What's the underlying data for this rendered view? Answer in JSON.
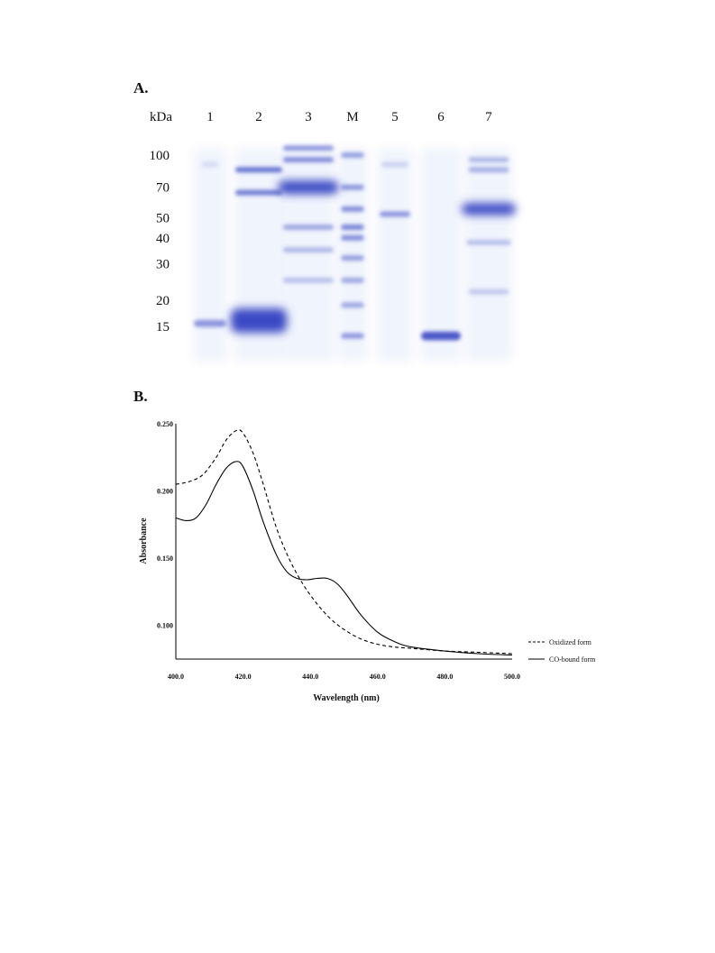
{
  "figure": {
    "panel_a_label": "A.",
    "panel_b_label": "B."
  },
  "gel": {
    "kda_header": "kDa",
    "lanes": [
      {
        "label": "1",
        "bands": [
          {
            "kda": 90,
            "intensity": 0.15,
            "width": 0.5
          },
          {
            "kda": 15.5,
            "intensity": 0.55,
            "width": 1.0,
            "thick": 1.3
          }
        ]
      },
      {
        "label": "2",
        "bands": [
          {
            "kda": 85,
            "intensity": 0.75,
            "width": 1.0
          },
          {
            "kda": 66,
            "intensity": 0.7,
            "width": 1.0
          },
          {
            "kda": 16,
            "intensity": 1.0,
            "width": 1.2,
            "thick": 4.5
          }
        ]
      },
      {
        "label": "3",
        "bands": [
          {
            "kda": 108,
            "intensity": 0.55,
            "width": 1.0
          },
          {
            "kda": 95,
            "intensity": 0.6,
            "width": 1.0
          },
          {
            "kda": 70,
            "intensity": 1.0,
            "width": 1.2,
            "thick": 2.5
          },
          {
            "kda": 45,
            "intensity": 0.45,
            "width": 1.0
          },
          {
            "kda": 35,
            "intensity": 0.35,
            "width": 1.0
          },
          {
            "kda": 25,
            "intensity": 0.3,
            "width": 1.0
          }
        ]
      },
      {
        "label": "M",
        "bands": [
          {
            "kda": 100,
            "intensity": 0.5,
            "width": 0.8
          },
          {
            "kda": 70,
            "intensity": 0.55,
            "width": 0.8
          },
          {
            "kda": 55,
            "intensity": 0.6,
            "width": 0.8
          },
          {
            "kda": 45,
            "intensity": 0.65,
            "width": 0.8
          },
          {
            "kda": 40,
            "intensity": 0.6,
            "width": 0.8
          },
          {
            "kda": 32,
            "intensity": 0.5,
            "width": 0.8
          },
          {
            "kda": 25,
            "intensity": 0.45,
            "width": 0.8
          },
          {
            "kda": 19,
            "intensity": 0.45,
            "width": 0.8
          },
          {
            "kda": 13.5,
            "intensity": 0.55,
            "width": 0.8
          }
        ]
      },
      {
        "label": "5",
        "bands": [
          {
            "kda": 90,
            "intensity": 0.2,
            "width": 0.8
          },
          {
            "kda": 52,
            "intensity": 0.55,
            "width": 0.9
          }
        ]
      },
      {
        "label": "6",
        "bands": [
          {
            "kda": 13.5,
            "intensity": 0.9,
            "width": 1.0,
            "thick": 1.6
          }
        ]
      },
      {
        "label": "7",
        "bands": [
          {
            "kda": 95,
            "intensity": 0.35,
            "width": 0.9
          },
          {
            "kda": 85,
            "intensity": 0.4,
            "width": 0.9
          },
          {
            "kda": 55,
            "intensity": 1.0,
            "width": 1.2,
            "thick": 2.2
          },
          {
            "kda": 38,
            "intensity": 0.3,
            "width": 1.0
          },
          {
            "kda": 22,
            "intensity": 0.25,
            "width": 0.9
          }
        ]
      }
    ],
    "markers_kda": [
      "100",
      "70",
      "50",
      "40",
      "30",
      "20",
      "15"
    ],
    "band_color": "#3a49c4"
  },
  "chart_data": {
    "type": "line",
    "title": "",
    "xlabel": "Wavelength (nm)",
    "ylabel": "Absorbance",
    "xlim": [
      400,
      500
    ],
    "ylim": [
      0.075,
      0.25
    ],
    "x_ticks": [
      "400.0",
      "420.0",
      "440.0",
      "460.0",
      "480.0",
      "500.0"
    ],
    "y_ticks": [
      "0.100",
      "0.150",
      "0.200",
      "0.250"
    ],
    "legend_position": "right",
    "series": [
      {
        "name": "Oxidized form",
        "style": "dashed",
        "x": [
          400,
          404,
          408,
          412,
          415,
          418,
          420,
          423,
          426,
          430,
          434,
          438,
          442,
          446,
          450,
          455,
          460,
          465,
          470,
          480,
          490,
          500
        ],
        "y": [
          0.205,
          0.207,
          0.212,
          0.225,
          0.238,
          0.245,
          0.243,
          0.228,
          0.205,
          0.172,
          0.148,
          0.13,
          0.116,
          0.105,
          0.097,
          0.09,
          0.086,
          0.084,
          0.083,
          0.081,
          0.08,
          0.079
        ]
      },
      {
        "name": "CO-bound form",
        "style": "solid",
        "x": [
          400,
          403,
          406,
          409,
          412,
          415,
          418,
          420,
          423,
          426,
          430,
          433,
          436,
          439,
          442,
          445,
          448,
          451,
          455,
          460,
          465,
          470,
          480,
          490,
          500
        ],
        "y": [
          0.18,
          0.178,
          0.18,
          0.19,
          0.205,
          0.217,
          0.222,
          0.218,
          0.2,
          0.177,
          0.152,
          0.14,
          0.135,
          0.134,
          0.135,
          0.135,
          0.131,
          0.122,
          0.108,
          0.095,
          0.088,
          0.084,
          0.081,
          0.079,
          0.078
        ]
      }
    ]
  }
}
